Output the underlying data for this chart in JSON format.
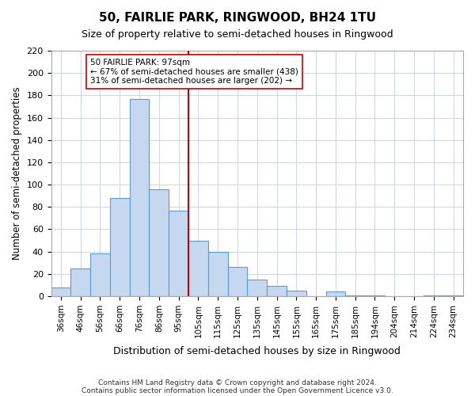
{
  "title": "50, FAIRLIE PARK, RINGWOOD, BH24 1TU",
  "subtitle": "Size of property relative to semi-detached houses in Ringwood",
  "xlabel": "Distribution of semi-detached houses by size in Ringwood",
  "ylabel": "Number of semi-detached properties",
  "bar_labels": [
    "36sqm",
    "46sqm",
    "56sqm",
    "66sqm",
    "76sqm",
    "86sqm",
    "95sqm",
    "105sqm",
    "115sqm",
    "125sqm",
    "135sqm",
    "145sqm",
    "155sqm",
    "165sqm",
    "175sqm",
    "185sqm",
    "194sqm",
    "204sqm",
    "214sqm",
    "224sqm",
    "234sqm"
  ],
  "bar_values": [
    8,
    25,
    38,
    88,
    177,
    96,
    77,
    50,
    40,
    26,
    15,
    9,
    5,
    0,
    4,
    1,
    1,
    0,
    0,
    1,
    1
  ],
  "bar_color": "#c5d8f0",
  "bar_edge_color": "#5b9bd5",
  "vline_x": 6,
  "vline_color": "#cc0000",
  "annotation_title": "50 FAIRLIE PARK: 97sqm",
  "annotation_line1": "← 67% of semi-detached houses are smaller (438)",
  "annotation_line2": "31% of semi-detached houses are larger (202) →",
  "annotation_box_color": "#ffffff",
  "annotation_box_edge": "#cc0000",
  "ylim": [
    0,
    220
  ],
  "yticks": [
    0,
    20,
    40,
    60,
    80,
    100,
    120,
    140,
    160,
    180,
    200,
    220
  ],
  "footer1": "Contains HM Land Registry data © Crown copyright and database right 2024.",
  "footer2": "Contains public sector information licensed under the Open Government Licence v3.0.",
  "bg_color": "#ffffff",
  "grid_color": "#d0d8e8"
}
